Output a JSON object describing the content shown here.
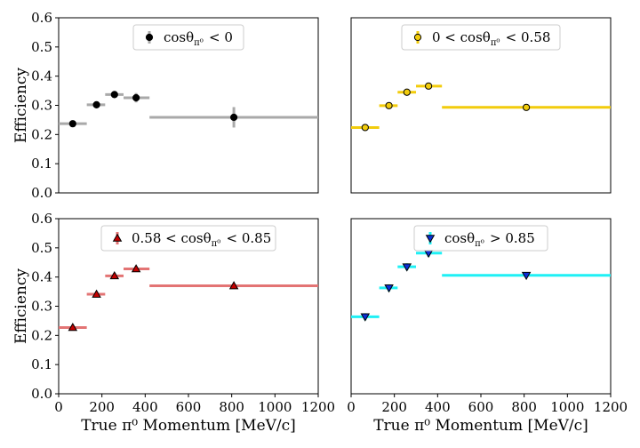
{
  "chart_data": [
    {
      "type": "scatter",
      "x_unit": "MeV/c",
      "legend": {
        "label": "cosθ_{π⁰} < 0",
        "placement": "top-center"
      },
      "series": [
        {
          "name": "cosθ_{π⁰} < 0",
          "color": "#a9a9a9",
          "face": "#000000",
          "marker": "circle",
          "points": [
            {
              "x": 65,
              "xlo": 0,
              "xhi": 130,
              "y": 0.237,
              "yerr": 0.006
            },
            {
              "x": 175,
              "xlo": 130,
              "xhi": 215,
              "y": 0.302,
              "yerr": 0.006
            },
            {
              "x": 258,
              "xlo": 215,
              "xhi": 300,
              "y": 0.337,
              "yerr": 0.006
            },
            {
              "x": 358,
              "xlo": 300,
              "xhi": 420,
              "y": 0.326,
              "yerr": 0.016
            },
            {
              "x": 810,
              "xlo": 420,
              "xhi": 1200,
              "y": 0.259,
              "yerr": 0.035
            }
          ]
        }
      ],
      "ylabel": "Efficiency",
      "xlabel": "",
      "xlim": [
        0,
        1200
      ],
      "ylim": [
        0,
        0.6
      ],
      "yticks": [
        "0.0",
        "0.1",
        "0.2",
        "0.3",
        "0.4",
        "0.5",
        "0.6"
      ],
      "xticks": [],
      "grid": false
    },
    {
      "type": "scatter",
      "x_unit": "MeV/c",
      "legend": {
        "label": "0 < cosθ_{π⁰} < 0.58",
        "placement": "top-center"
      },
      "series": [
        {
          "name": "0 < cosθ_{π⁰} < 0.58",
          "color": "#f2cc0c",
          "face": "#f2cc0c",
          "marker": "circle",
          "points": [
            {
              "x": 65,
              "xlo": 0,
              "xhi": 130,
              "y": 0.224,
              "yerr": 0.004
            },
            {
              "x": 175,
              "xlo": 130,
              "xhi": 215,
              "y": 0.299,
              "yerr": 0.004
            },
            {
              "x": 258,
              "xlo": 215,
              "xhi": 300,
              "y": 0.345,
              "yerr": 0.005
            },
            {
              "x": 358,
              "xlo": 300,
              "xhi": 420,
              "y": 0.366,
              "yerr": 0.005
            },
            {
              "x": 810,
              "xlo": 420,
              "xhi": 1200,
              "y": 0.293,
              "yerr": 0.004
            }
          ]
        }
      ],
      "ylabel": "",
      "xlabel": "",
      "xlim": [
        0,
        1200
      ],
      "ylim": [
        0,
        0.6
      ],
      "yticks": [],
      "xticks": [],
      "grid": false
    },
    {
      "type": "scatter",
      "x_unit": "MeV/c",
      "legend": {
        "label": "0.58 < cosθ_{π⁰} < 0.85",
        "placement": "top-center"
      },
      "series": [
        {
          "name": "0.58 < cosθ_{π⁰} < 0.85",
          "color": "#e37474",
          "face": "#c40000",
          "marker": "triangle-up",
          "points": [
            {
              "x": 65,
              "xlo": 0,
              "xhi": 130,
              "y": 0.227,
              "yerr": 0.01
            },
            {
              "x": 175,
              "xlo": 130,
              "xhi": 215,
              "y": 0.341,
              "yerr": 0.01
            },
            {
              "x": 258,
              "xlo": 215,
              "xhi": 300,
              "y": 0.404,
              "yerr": 0.01
            },
            {
              "x": 358,
              "xlo": 300,
              "xhi": 420,
              "y": 0.428,
              "yerr": 0.01
            },
            {
              "x": 810,
              "xlo": 420,
              "xhi": 1200,
              "y": 0.37,
              "yerr": 0.005
            }
          ]
        }
      ],
      "ylabel": "Efficiency",
      "xlabel": "True π⁰ Momentum [MeV/c]",
      "xlim": [
        0,
        1200
      ],
      "ylim": [
        0,
        0.6
      ],
      "yticks": [
        "0.0",
        "0.1",
        "0.2",
        "0.3",
        "0.4",
        "0.5",
        "0.6"
      ],
      "xticks": [
        "0",
        "200",
        "400",
        "600",
        "800",
        "1000",
        "1200"
      ],
      "grid": false
    },
    {
      "type": "scatter",
      "x_unit": "MeV/c",
      "legend": {
        "label": "cosθ_{π⁰} > 0.85",
        "placement": "top-center"
      },
      "series": [
        {
          "name": "cosθ_{π⁰} > 0.85",
          "color": "#1ff0f5",
          "face": "#0b2fd6",
          "marker": "triangle-down",
          "points": [
            {
              "x": 65,
              "xlo": 0,
              "xhi": 130,
              "y": 0.264,
              "yerr": 0.012
            },
            {
              "x": 175,
              "xlo": 130,
              "xhi": 215,
              "y": 0.363,
              "yerr": 0.012
            },
            {
              "x": 258,
              "xlo": 215,
              "xhi": 300,
              "y": 0.435,
              "yerr": 0.012
            },
            {
              "x": 358,
              "xlo": 300,
              "xhi": 420,
              "y": 0.482,
              "yerr": 0.012
            },
            {
              "x": 810,
              "xlo": 420,
              "xhi": 1200,
              "y": 0.406,
              "yerr": 0.006
            }
          ]
        }
      ],
      "ylabel": "",
      "xlabel": "True π⁰ Momentum [MeV/c]",
      "xlim": [
        0,
        1200
      ],
      "ylim": [
        0,
        0.6
      ],
      "yticks": [],
      "xticks": [
        "0",
        "200",
        "400",
        "600",
        "800",
        "1000",
        "1200"
      ],
      "grid": false
    }
  ]
}
